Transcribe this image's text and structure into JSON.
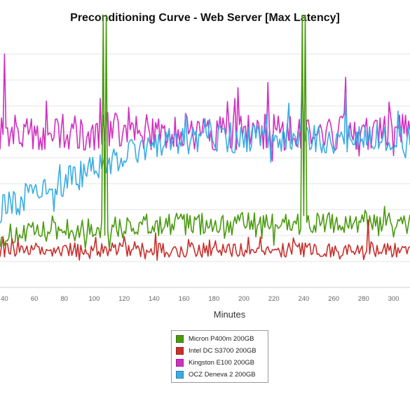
{
  "chart_data": {
    "type": "line",
    "title": "Preconditioning Curve - Web Server [Max Latency]",
    "xlabel": "Minutes",
    "ylabel": "",
    "xlim": [
      37,
      311
    ],
    "ylim": [
      0,
      10
    ],
    "x_ticks": [
      40,
      60,
      80,
      100,
      120,
      140,
      160,
      180,
      200,
      220,
      240,
      260,
      280,
      300
    ],
    "y_gridlines": [
      1,
      2,
      3,
      4,
      5,
      6,
      7,
      8,
      9
    ],
    "grid": true,
    "legend_position": "bottom-center",
    "series": [
      {
        "name": "Micron P400m 200GB",
        "color": "#4a9a10",
        "base": 2.45,
        "start": 2.0,
        "noise": 0.55,
        "spikes": [
          [
            106,
            10.5
          ],
          [
            108,
            10.5
          ],
          [
            239,
            10.5
          ],
          [
            241,
            10.5
          ]
        ]
      },
      {
        "name": "Intel DC S3700 200GB",
        "color": "#c8302c",
        "base": 1.45,
        "start": 1.45,
        "noise": 0.35,
        "spikes": [
          [
            283,
            2.6
          ],
          [
            141,
            2.1
          ]
        ]
      },
      {
        "name": "Kingston E100 200GB",
        "color": "#d030c0",
        "base": 6.0,
        "start": 6.0,
        "noise": 0.9,
        "spikes": [
          [
            40,
            9.0
          ],
          [
            216,
            7.9
          ],
          [
            239,
            8.0
          ],
          [
            268,
            8.1
          ],
          [
            196,
            7.7
          ]
        ]
      },
      {
        "name": "OCZ Deneva 2 200GB",
        "color": "#3aace4",
        "base": 5.7,
        "start": 3.0,
        "noise": 0.7,
        "spikes": [
          [
            239,
            8.3
          ],
          [
            268,
            7.5
          ],
          [
            303,
            6.8
          ],
          [
            230,
            7.1
          ]
        ]
      }
    ]
  }
}
